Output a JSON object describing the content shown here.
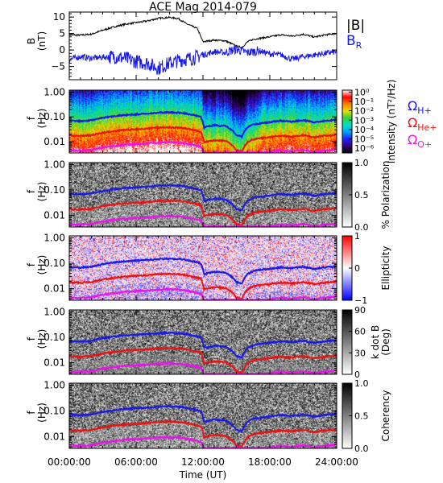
{
  "chart_data": {
    "title": "ACE Mag 2014-079",
    "type": "line",
    "x_axis": {
      "label": "Time (UT)",
      "range_hours": [
        0,
        24
      ],
      "ticks": [
        "00:00:00",
        "06:00:00",
        "12:00:00",
        "18:00:00",
        "24:00:00"
      ],
      "minor_tick_step_hours": 1
    },
    "panels": [
      {
        "id": "field",
        "type": "line",
        "ylabel": [
          "B",
          "(nT)"
        ],
        "ylim": [
          -9,
          11.5
        ],
        "yticks": [
          -5,
          0,
          5,
          10
        ],
        "legend": [
          {
            "text": "|B|",
            "sub": "",
            "color": "#000000"
          },
          {
            "text": "B",
            "sub": "R",
            "color": "#1a1ae6"
          }
        ],
        "series": [
          {
            "name": "|B|",
            "color": "#000000",
            "x": [
              0,
              1,
              2,
              3,
              4,
              5,
              6,
              7,
              8,
              9,
              9.8,
              10.5,
              11.5,
              12,
              13,
              14,
              14.5,
              15,
              15.5,
              16,
              16.5,
              17,
              18,
              19,
              20,
              21,
              22,
              23,
              24
            ],
            "y": [
              4.6,
              4.5,
              4.8,
              6.0,
              7.0,
              7.8,
              8.3,
              8.8,
              9.6,
              9.9,
              9.5,
              8.0,
              6.5,
              2.5,
              3.0,
              2.8,
              2.0,
              1.2,
              0.8,
              2.5,
              3.2,
              3.5,
              4.0,
              4.6,
              4.2,
              4.8,
              3.9,
              4.6,
              5.0
            ]
          },
          {
            "name": "B_R",
            "color": "#1a1ae6",
            "x": [
              0,
              1,
              2,
              3,
              4,
              5,
              6,
              7,
              8,
              9,
              10,
              11,
              12,
              13,
              14,
              14.5,
              15,
              15.5,
              16,
              17,
              18,
              19,
              20,
              21,
              22,
              23,
              24
            ],
            "y": [
              -2.8,
              -2.0,
              -2.5,
              -2.2,
              -2.0,
              -2.5,
              -3.5,
              -4.0,
              -5.5,
              -4.0,
              -3.0,
              -2.5,
              -1.5,
              -0.5,
              -0.8,
              -0.2,
              0.2,
              -0.3,
              -0.8,
              -0.2,
              -1.2,
              -1.5,
              -2.8,
              -2.0,
              -1.5,
              -1.0,
              -0.5
            ]
          }
        ]
      },
      {
        "id": "intensity",
        "type": "heatmap",
        "ylabel": [
          "f",
          "(Hz)"
        ],
        "colorbar": {
          "label": "Intensity (nT²/Hz)",
          "scale": "log",
          "ticks": [
            "10⁰",
            "10⁻¹",
            "10⁻²",
            "10⁻³",
            "10⁻⁴",
            "10⁻⁵",
            "10⁻⁶"
          ],
          "tick_values": [
            0,
            -1,
            -2,
            -3,
            -4,
            -5,
            -6
          ],
          "range": [
            -6.5,
            0.2
          ],
          "stops": [
            "#000000",
            "#3a007a",
            "#2020ff",
            "#00a0ff",
            "#00e0c0",
            "#30d040",
            "#e0e000",
            "#ff8000",
            "#ff0000",
            "#ffffff"
          ]
        },
        "legend": [
          {
            "text": "Ω",
            "sub": "H+",
            "color": "#1a1ae6"
          },
          {
            "text": "Ω",
            "sub": "He+",
            "color": "#ee1111"
          },
          {
            "text": "Ω",
            "sub": "O+",
            "color": "#ee11ee"
          }
        ]
      },
      {
        "id": "polarization",
        "type": "heatmap",
        "ylabel": [
          "f",
          "(Hz)"
        ],
        "colorbar": {
          "label": "% Polarization",
          "scale": "linear",
          "ticks": [
            "1.0",
            "0.5",
            "0.0"
          ],
          "tick_values": [
            1.0,
            0.5,
            0.0
          ],
          "range": [
            0,
            1
          ],
          "stops": [
            "#ffffff",
            "#000000"
          ]
        }
      },
      {
        "id": "ellipticity",
        "type": "heatmap",
        "ylabel": [
          "f",
          "(Hz)"
        ],
        "colorbar": {
          "label": "Ellipticity",
          "scale": "linear",
          "ticks": [
            "1",
            "0",
            "−1"
          ],
          "tick_values": [
            1,
            0,
            -1
          ],
          "range": [
            -1,
            1
          ],
          "stops": [
            "#0000ff",
            "#ffffff",
            "#ff0000"
          ]
        }
      },
      {
        "id": "kdotb",
        "type": "heatmap",
        "ylabel": [
          "f",
          "(Hz)"
        ],
        "colorbar": {
          "label": [
            "k dot B",
            "(Deg)"
          ],
          "scale": "linear",
          "ticks": [
            "90",
            "60",
            "30",
            "0"
          ],
          "tick_values": [
            90,
            60,
            30,
            0
          ],
          "range": [
            0,
            90
          ],
          "stops": [
            "#ffffff",
            "#000000"
          ]
        }
      },
      {
        "id": "coherency",
        "type": "heatmap",
        "ylabel": [
          "f",
          "(Hz)"
        ],
        "colorbar": {
          "label": "Coherency",
          "scale": "linear",
          "ticks": [
            "1.0",
            "0.5",
            "0.0"
          ],
          "tick_values": [
            1.0,
            0.5,
            0.0
          ],
          "range": [
            0,
            1
          ],
          "stops": [
            "#ffffff",
            "#000000"
          ]
        }
      }
    ],
    "frequency_axis": {
      "scale": "log",
      "range_hz": [
        0.0035,
        1.2
      ],
      "ticks": [
        "1.00",
        "0.10",
        "0.01"
      ],
      "tick_values": [
        1.0,
        0.1,
        0.01
      ]
    },
    "gyrofrequency_curves": [
      {
        "name": "Ω_H+",
        "color": "#1a1ae6",
        "x": [
          0,
          1,
          2,
          3,
          4,
          5,
          6,
          7,
          8,
          9,
          10,
          11,
          11.8,
          12.1,
          13,
          14,
          14.5,
          15,
          15.5,
          16,
          16.5,
          17,
          18,
          19,
          20,
          21,
          22,
          23,
          24
        ],
        "y": [
          0.07,
          0.068,
          0.073,
          0.092,
          0.107,
          0.119,
          0.127,
          0.135,
          0.147,
          0.152,
          0.146,
          0.122,
          0.1,
          0.038,
          0.046,
          0.043,
          0.031,
          0.018,
          0.016,
          0.038,
          0.049,
          0.054,
          0.061,
          0.07,
          0.064,
          0.073,
          0.06,
          0.07,
          0.076
        ]
      },
      {
        "name": "Ω_He+",
        "color": "#ee1111",
        "x": [
          0,
          1,
          2,
          3,
          4,
          5,
          6,
          7,
          8,
          9,
          10,
          11,
          11.8,
          12.1,
          13,
          14,
          14.5,
          15,
          15.5,
          16,
          16.5,
          17,
          18,
          19,
          20,
          21,
          22,
          23,
          24
        ],
        "y": [
          0.0175,
          0.017,
          0.0183,
          0.023,
          0.0268,
          0.0298,
          0.0318,
          0.0338,
          0.0368,
          0.038,
          0.0365,
          0.0305,
          0.025,
          0.0095,
          0.0115,
          0.0108,
          0.0078,
          0.0045,
          0.004,
          0.0095,
          0.0123,
          0.0135,
          0.0153,
          0.0175,
          0.016,
          0.0183,
          0.015,
          0.0175,
          0.019
        ]
      },
      {
        "name": "Ω_O+",
        "color": "#ee11ee",
        "x": [
          0,
          1,
          2,
          3,
          4,
          5,
          6,
          7,
          8,
          9,
          10,
          11,
          11.8,
          12.1,
          13,
          14,
          14.5,
          15,
          15.5,
          16,
          16.5,
          17,
          18,
          19,
          20,
          21,
          22,
          23,
          24
        ],
        "y": [
          0.0044,
          0.0043,
          0.0046,
          0.0058,
          0.0067,
          0.0075,
          0.008,
          0.0085,
          0.0092,
          0.0095,
          0.0091,
          0.0076,
          0.0063,
          0.0036,
          0.0036,
          0.0036,
          0.0036,
          0.0036,
          0.0036,
          0.0036,
          0.0036,
          0.0036,
          0.0038,
          0.0044,
          0.004,
          0.0046,
          0.0038,
          0.0044,
          0.0048
        ]
      }
    ]
  }
}
